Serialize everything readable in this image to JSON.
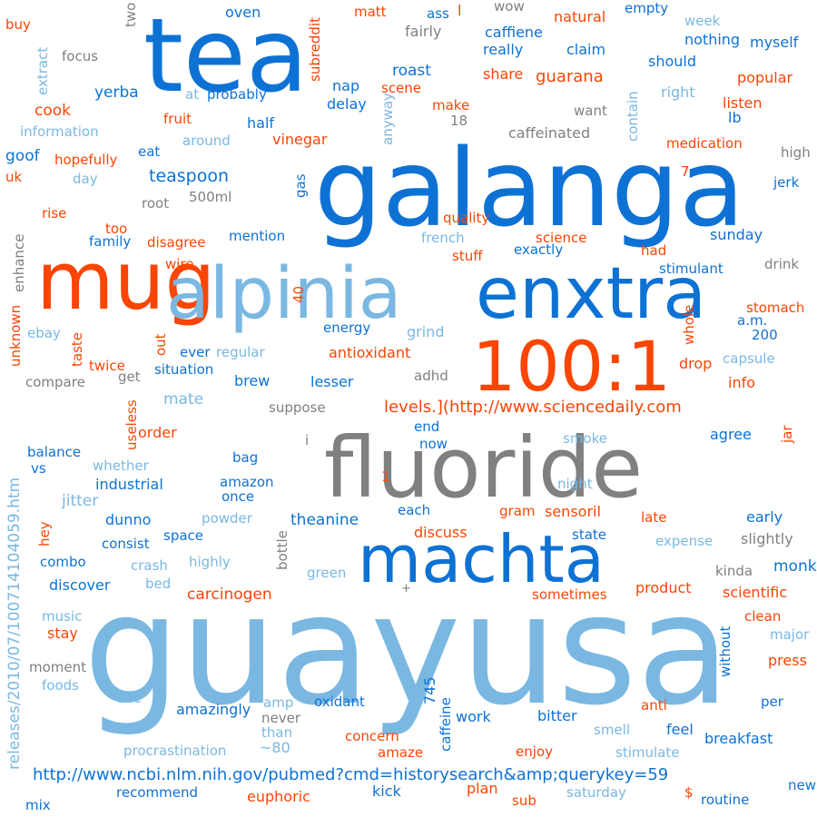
{
  "words": [
    {
      "text": "guayusa",
      "color": "#7ab8e2"
    },
    {
      "text": "galanga",
      "color": "#0e72d4"
    },
    {
      "text": "tea",
      "color": "#0e72d4"
    },
    {
      "text": "fluoride",
      "color": "#808080"
    },
    {
      "text": "mug",
      "color": "#fa4504"
    },
    {
      "text": "alpinia",
      "color": "#7ab8e2"
    },
    {
      "text": "enxtra",
      "color": "#0e72d4"
    },
    {
      "text": "machta",
      "color": "#0e72d4"
    },
    {
      "text": "100:1",
      "color": "#fa4504"
    },
    {
      "text": "levels.](http://www.sciencedaily.com",
      "color": "#fa4504"
    },
    {
      "text": "http://www.ncbi.nlm.nih.gov/pubmed?cmd=historysearch&amp;querykey=59",
      "color": "#0e72d4"
    },
    {
      "text": "releases/2010/07/100714104059.htm",
      "color": "#7ab8e2"
    },
    {
      "text": "buy",
      "color": "#fa4504"
    },
    {
      "text": "two",
      "color": "#808080"
    },
    {
      "text": "focus",
      "color": "#808080"
    },
    {
      "text": "extract",
      "color": "#7ab8e2"
    },
    {
      "text": "information",
      "color": "#7ab8e2"
    },
    {
      "text": "goof",
      "color": "#0e72d4"
    },
    {
      "text": "uk",
      "color": "#fa4504"
    },
    {
      "text": "day",
      "color": "#7ab8e2"
    },
    {
      "text": "rise",
      "color": "#fa4504"
    },
    {
      "text": "enhance",
      "color": "#808080"
    },
    {
      "text": "unknown",
      "color": "#fa4504"
    },
    {
      "text": "ebay",
      "color": "#7ab8e2"
    },
    {
      "text": "taste",
      "color": "#fa4504"
    },
    {
      "text": "compare",
      "color": "#808080"
    },
    {
      "text": "twice",
      "color": "#fa4504"
    },
    {
      "text": "get",
      "color": "#808080"
    },
    {
      "text": "useless",
      "color": "#fa4504"
    },
    {
      "text": "balance",
      "color": "#0e72d4"
    },
    {
      "text": "vs",
      "color": "#0e72d4"
    },
    {
      "text": "jitter",
      "color": "#7ab8e2"
    },
    {
      "text": "hey",
      "color": "#fa4504"
    },
    {
      "text": "combo",
      "color": "#0e72d4"
    },
    {
      "text": "discover",
      "color": "#0e72d4"
    },
    {
      "text": "music",
      "color": "#7ab8e2"
    },
    {
      "text": "stay",
      "color": "#fa4504"
    },
    {
      "text": "moment",
      "color": "#808080"
    },
    {
      "text": "foods",
      "color": "#7ab8e2"
    },
    {
      "text": "one",
      "color": "#7ab8e2"
    },
    {
      "text": "mix",
      "color": "#0e72d4"
    },
    {
      "text": "yerba",
      "color": "#0e72d4"
    },
    {
      "text": "cook",
      "color": "#fa4504"
    },
    {
      "text": "at",
      "color": "#7ab8e2"
    },
    {
      "text": "probably",
      "color": "#0e72d4"
    },
    {
      "text": "fruit",
      "color": "#fa4504"
    },
    {
      "text": "half",
      "color": "#0e72d4"
    },
    {
      "text": "around",
      "color": "#7ab8e2"
    },
    {
      "text": "eat",
      "color": "#0e72d4"
    },
    {
      "text": "hopefully",
      "color": "#fa4504"
    },
    {
      "text": "teaspoon",
      "color": "#0e72d4"
    },
    {
      "text": "500ml",
      "color": "#808080"
    },
    {
      "text": "root",
      "color": "#808080"
    },
    {
      "text": "too",
      "color": "#fa4504"
    },
    {
      "text": "family",
      "color": "#0e72d4"
    },
    {
      "text": "disagree",
      "color": "#fa4504"
    },
    {
      "text": "wire",
      "color": "#fa4504"
    },
    {
      "text": "mention",
      "color": "#0e72d4"
    },
    {
      "text": "gas",
      "color": "#0e72d4"
    },
    {
      "text": "40",
      "color": "#fa4504"
    },
    {
      "text": "out",
      "color": "#fa4504"
    },
    {
      "text": "ever",
      "color": "#0e72d4"
    },
    {
      "text": "regular",
      "color": "#7ab8e2"
    },
    {
      "text": "situation",
      "color": "#0e72d4"
    },
    {
      "text": "brew",
      "color": "#0e72d4"
    },
    {
      "text": "mate",
      "color": "#7ab8e2"
    },
    {
      "text": "lesser",
      "color": "#0e72d4"
    },
    {
      "text": "suppose",
      "color": "#808080"
    },
    {
      "text": "i",
      "color": "#808080"
    },
    {
      "text": "order",
      "color": "#fa4504"
    },
    {
      "text": "whether",
      "color": "#7ab8e2"
    },
    {
      "text": "bag",
      "color": "#0e72d4"
    },
    {
      "text": "industrial",
      "color": "#0e72d4"
    },
    {
      "text": "amazon",
      "color": "#0e72d4"
    },
    {
      "text": "once",
      "color": "#0e72d4"
    },
    {
      "text": "dunno",
      "color": "#0e72d4"
    },
    {
      "text": "powder",
      "color": "#7ab8e2"
    },
    {
      "text": "consist",
      "color": "#0e72d4"
    },
    {
      "text": "space",
      "color": "#0e72d4"
    },
    {
      "text": "crash",
      "color": "#7ab8e2"
    },
    {
      "text": "highly",
      "color": "#7ab8e2"
    },
    {
      "text": "bed",
      "color": "#7ab8e2"
    },
    {
      "text": "bottle",
      "color": "#808080"
    },
    {
      "text": "theanine",
      "color": "#0e72d4"
    },
    {
      "text": "carcinogen",
      "color": "#fa4504"
    },
    {
      "text": "green",
      "color": "#7ab8e2"
    },
    {
      "text": "amazingly",
      "color": "#0e72d4"
    },
    {
      "text": "amp",
      "color": "#7ab8e2"
    },
    {
      "text": "never",
      "color": "#808080"
    },
    {
      "text": "than",
      "color": "#7ab8e2"
    },
    {
      "text": "~80",
      "color": "#7ab8e2"
    },
    {
      "text": "procrastination",
      "color": "#7ab8e2"
    },
    {
      "text": "recommend",
      "color": "#0e72d4"
    },
    {
      "text": "euphoric",
      "color": "#fa4504"
    },
    {
      "text": "oxidant",
      "color": "#0e72d4"
    },
    {
      "text": "745",
      "color": "#0e72d4"
    },
    {
      "text": "caffeine",
      "color": "#0e72d4"
    },
    {
      "text": "work",
      "color": "#0e72d4"
    },
    {
      "text": "concern",
      "color": "#fa4504"
    },
    {
      "text": "amaze",
      "color": "#fa4504"
    },
    {
      "text": "kick",
      "color": "#0e72d4"
    },
    {
      "text": "plan",
      "color": "#fa4504"
    },
    {
      "text": "sub",
      "color": "#fa4504"
    },
    {
      "text": "enjoy",
      "color": "#fa4504"
    },
    {
      "text": "bitter",
      "color": "#0e72d4"
    },
    {
      "text": "smell",
      "color": "#7ab8e2"
    },
    {
      "text": "feel",
      "color": "#0e72d4"
    },
    {
      "text": "saturday",
      "color": "#7ab8e2"
    },
    {
      "text": "$",
      "color": "#fa4504"
    },
    {
      "text": "stimulate",
      "color": "#7ab8e2"
    },
    {
      "text": "breakfast",
      "color": "#0e72d4"
    },
    {
      "text": "anti",
      "color": "#fa4504"
    },
    {
      "text": "per",
      "color": "#0e72d4"
    },
    {
      "text": "routine",
      "color": "#0e72d4"
    },
    {
      "text": "new",
      "color": "#0e72d4"
    },
    {
      "text": "without",
      "color": "#0e72d4"
    },
    {
      "text": "press",
      "color": "#fa4504"
    },
    {
      "text": "major",
      "color": "#7ab8e2"
    },
    {
      "text": "clean",
      "color": "#fa4504"
    },
    {
      "text": "scientific",
      "color": "#fa4504"
    },
    {
      "text": "product",
      "color": "#fa4504"
    },
    {
      "text": "kinda",
      "color": "#808080"
    },
    {
      "text": "monk",
      "color": "#0e72d4"
    },
    {
      "text": "slightly",
      "color": "#808080"
    },
    {
      "text": "expense",
      "color": "#7ab8e2"
    },
    {
      "text": "early",
      "color": "#0e72d4"
    },
    {
      "text": "late",
      "color": "#fa4504"
    },
    {
      "text": "state",
      "color": "#0e72d4"
    },
    {
      "text": "sometimes",
      "color": "#fa4504"
    },
    {
      "text": "+",
      "color": "#808080"
    },
    {
      "text": "discuss",
      "color": "#fa4504"
    },
    {
      "text": "gram",
      "color": "#fa4504"
    },
    {
      "text": "sensoril",
      "color": "#fa4504"
    },
    {
      "text": "each",
      "color": "#0e72d4"
    },
    {
      "text": "night",
      "color": "#7ab8e2"
    },
    {
      "text": "1",
      "color": "#fa4504"
    },
    {
      "text": "now",
      "color": "#0e72d4"
    },
    {
      "text": "end",
      "color": "#0e72d4"
    },
    {
      "text": "smoke",
      "color": "#7ab8e2"
    },
    {
      "text": "agree",
      "color": "#0e72d4"
    },
    {
      "text": "jar",
      "color": "#fa4504"
    },
    {
      "text": "adhd",
      "color": "#808080"
    },
    {
      "text": "antioxidant",
      "color": "#fa4504"
    },
    {
      "text": "energy",
      "color": "#0e72d4"
    },
    {
      "text": "grind",
      "color": "#7ab8e2"
    },
    {
      "text": "drop",
      "color": "#fa4504"
    },
    {
      "text": "capsule",
      "color": "#7ab8e2"
    },
    {
      "text": "info",
      "color": "#fa4504"
    },
    {
      "text": "200",
      "color": "#0e72d4"
    },
    {
      "text": "a.m.",
      "color": "#0e72d4"
    },
    {
      "text": "whole",
      "color": "#fa4504"
    },
    {
      "text": "stomach",
      "color": "#fa4504"
    },
    {
      "text": "stimulant",
      "color": "#0e72d4"
    },
    {
      "text": "drink",
      "color": "#808080"
    },
    {
      "text": "had",
      "color": "#fa4504"
    },
    {
      "text": "exactly",
      "color": "#0e72d4"
    },
    {
      "text": "sunday",
      "color": "#0e72d4"
    },
    {
      "text": "science",
      "color": "#fa4504"
    },
    {
      "text": "stuff",
      "color": "#fa4504"
    },
    {
      "text": "french",
      "color": "#7ab8e2"
    },
    {
      "text": "quality",
      "color": "#fa4504"
    },
    {
      "text": "jerk",
      "color": "#0e72d4"
    },
    {
      "text": "high",
      "color": "#808080"
    },
    {
      "text": "7",
      "color": "#fa4504"
    },
    {
      "text": "medication",
      "color": "#fa4504"
    },
    {
      "text": "caffeinated",
      "color": "#808080"
    },
    {
      "text": "vinegar",
      "color": "#fa4504"
    },
    {
      "text": "anyway",
      "color": "#7ab8e2"
    },
    {
      "text": "18",
      "color": "#808080"
    },
    {
      "text": "make",
      "color": "#fa4504"
    },
    {
      "text": "want",
      "color": "#808080"
    },
    {
      "text": "contain",
      "color": "#7ab8e2"
    },
    {
      "text": "lb",
      "color": "#0e72d4"
    },
    {
      "text": "listen",
      "color": "#fa4504"
    },
    {
      "text": "right",
      "color": "#7ab8e2"
    },
    {
      "text": "popular",
      "color": "#fa4504"
    },
    {
      "text": "should",
      "color": "#0e72d4"
    },
    {
      "text": "myself",
      "color": "#0e72d4"
    },
    {
      "text": "nothing",
      "color": "#0e72d4"
    },
    {
      "text": "week",
      "color": "#7ab8e2"
    },
    {
      "text": "empty",
      "color": "#0e72d4"
    },
    {
      "text": "natural",
      "color": "#fa4504"
    },
    {
      "text": "claim",
      "color": "#0e72d4"
    },
    {
      "text": "guarana",
      "color": "#fa4504"
    },
    {
      "text": "share",
      "color": "#fa4504"
    },
    {
      "text": "really",
      "color": "#0e72d4"
    },
    {
      "text": "caffiene",
      "color": "#0e72d4"
    },
    {
      "text": "wow",
      "color": "#808080"
    },
    {
      "text": "l",
      "color": "#fa4504"
    },
    {
      "text": "ass",
      "color": "#0e72d4"
    },
    {
      "text": "fairly",
      "color": "#808080"
    },
    {
      "text": "matt",
      "color": "#fa4504"
    },
    {
      "text": "subreddit",
      "color": "#fa4504"
    },
    {
      "text": "oven",
      "color": "#0e72d4"
    },
    {
      "text": "roast",
      "color": "#0e72d4"
    },
    {
      "text": "scene",
      "color": "#fa4504"
    },
    {
      "text": "nap",
      "color": "#0e72d4"
    },
    {
      "text": "delay",
      "color": "#0e72d4"
    }
  ]
}
